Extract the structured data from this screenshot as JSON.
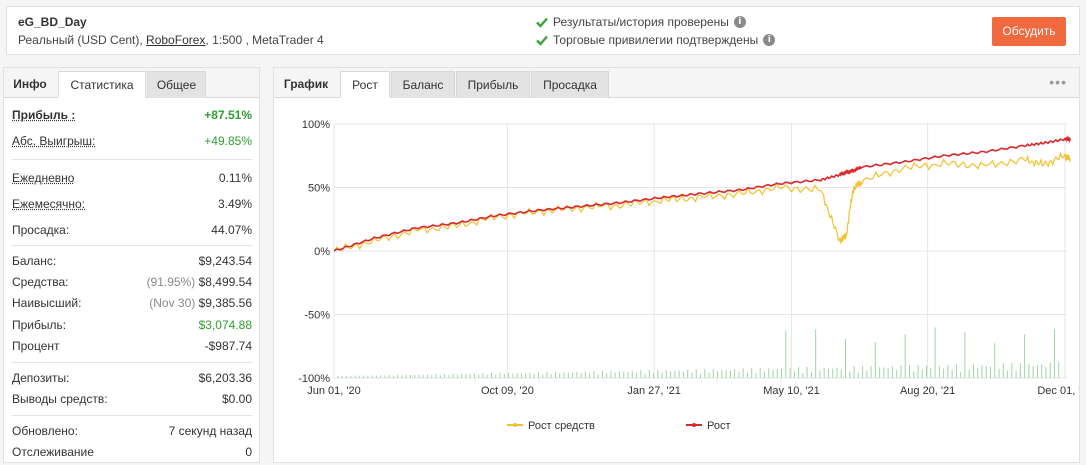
{
  "header": {
    "account_name": "eG_BD_Day",
    "account_prefix": "Реальный (USD Cent), ",
    "broker": "RoboForex",
    "account_suffix": ", 1:500 , MetaTrader 4",
    "verify_results": "Результаты/история проверены",
    "verify_privileges": "Торговые привилегии подтверждены",
    "discuss_label": "Обсудить",
    "check_color": "#3aa63a"
  },
  "left_tabs": [
    "Инфо",
    "Статистика",
    "Общее"
  ],
  "stats": {
    "profit": {
      "label": "Прибыль :",
      "value": "+87.51%"
    },
    "abs_gain": {
      "label": "Абс. Выигрыш:",
      "value": "+49.85%"
    },
    "daily": {
      "label": "Ежедневно",
      "value": "0.11%"
    },
    "monthly": {
      "label": "Ежемесячно:",
      "value": "3.49%"
    },
    "drawdown": {
      "label": "Просадка:",
      "value": "44.07%"
    },
    "balance": {
      "label": "Баланс:",
      "value": "$9,243.54"
    },
    "equity": {
      "label": "Средства:",
      "sub": "(91.95%)",
      "value": "$8,499.54"
    },
    "highest": {
      "label": "Наивысший:",
      "sub": "(Nov 30)",
      "value": "$9,385.56"
    },
    "profit_amount": {
      "label": "Прибыль:",
      "value": "$3,074.88"
    },
    "interest": {
      "label": "Процент",
      "value": "-$987.74"
    },
    "deposits": {
      "label": "Депозиты:",
      "value": "$6,203.36"
    },
    "withdrawals": {
      "label": "Выводы средств:",
      "value": "$0.00"
    },
    "updated": {
      "label": "Обновлено:",
      "value": "7 секунд назад"
    },
    "tracking": {
      "label": "Отслеживание",
      "value": "0"
    }
  },
  "right_tabs": {
    "label": "График",
    "tabs": [
      "Рост",
      "Баланс",
      "Прибыль",
      "Просадка"
    ]
  },
  "chart_data": {
    "type": "line",
    "y_ticks": [
      "100%",
      "50%",
      "0%",
      "-50%",
      "-100%"
    ],
    "x_ticks": [
      "Jun 01, '20",
      "Oct 09, '20",
      "Jan 27, '21",
      "May 10, '21",
      "Aug 20, '21",
      "Dec 01, '21"
    ],
    "ylim": [
      -100,
      100
    ],
    "grid": true,
    "legend_position": "bottom",
    "x": [
      "2020-06-01",
      "2020-07-01",
      "2020-08-01",
      "2020-09-01",
      "2020-10-01",
      "2020-11-01",
      "2020-12-01",
      "2021-01-01",
      "2021-02-01",
      "2021-03-01",
      "2021-04-01",
      "2021-05-01",
      "2021-06-01",
      "2021-06-15",
      "2021-06-20",
      "2021-06-25",
      "2021-07-01",
      "2021-08-01",
      "2021-09-01",
      "2021-10-01",
      "2021-11-01",
      "2021-11-15",
      "2021-12-01",
      "2021-12-05"
    ],
    "series": [
      {
        "name": "Рост средств",
        "color": "#f2c12e",
        "values": [
          0,
          8,
          16,
          20,
          27,
          31,
          34,
          36,
          40,
          42,
          45,
          50,
          48,
          8,
          12,
          48,
          55,
          65,
          69,
          67,
          72,
          68,
          75,
          72
        ]
      },
      {
        "name": "Рост",
        "color": "#d9282c",
        "values": [
          0,
          10,
          18,
          22,
          28,
          32,
          35,
          38,
          42,
          45,
          48,
          53,
          56,
          60,
          62,
          63,
          66,
          70,
          75,
          78,
          83,
          85,
          88,
          88
        ]
      }
    ],
    "volume_color": "#9fd3a6"
  }
}
